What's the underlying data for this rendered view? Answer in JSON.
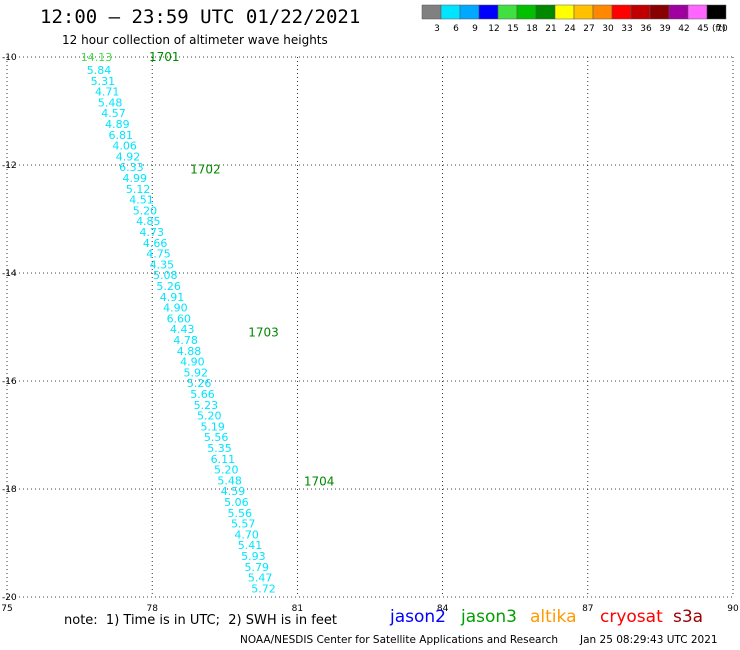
{
  "header": {
    "title": "12:00 – 23:59 UTC 01/22/2021",
    "subtitle": "12 hour collection of altimeter wave heights"
  },
  "legend": {
    "unit": "(ft)",
    "bins": [
      {
        "label": "3",
        "color": "#808080"
      },
      {
        "label": "6",
        "color": "#00e5ff"
      },
      {
        "label": "9",
        "color": "#00a8ff"
      },
      {
        "label": "12",
        "color": "#0000ff"
      },
      {
        "label": "15",
        "color": "#40e040"
      },
      {
        "label": "18",
        "color": "#00c000"
      },
      {
        "label": "21",
        "color": "#008800"
      },
      {
        "label": "24",
        "color": "#ffff00"
      },
      {
        "label": "27",
        "color": "#ffc000"
      },
      {
        "label": "30",
        "color": "#ff8800"
      },
      {
        "label": "33",
        "color": "#ff0000"
      },
      {
        "label": "36",
        "color": "#c00000"
      },
      {
        "label": "39",
        "color": "#880000"
      },
      {
        "label": "42",
        "color": "#a000a0"
      },
      {
        "label": "45",
        "color": "#ff66ff"
      },
      {
        "label": "70",
        "color": "#000000"
      }
    ]
  },
  "footer": {
    "note": "note:  1) Time is in UTC;  2) SWH is in feet",
    "satellites": [
      {
        "name": "jason2",
        "color": "#0000ff"
      },
      {
        "name": "jason3",
        "color": "#00a000"
      },
      {
        "name": "altika",
        "color": "#ff9900"
      },
      {
        "name": "cryosat",
        "color": "#ff0000"
      },
      {
        "name": "s3a",
        "color": "#990000"
      }
    ],
    "credit": "NOAA/NESDIS Center for Satellite Applications and Research",
    "timestamp": "Jan 25 08:29:43 UTC 2021"
  },
  "chart_data": {
    "type": "scatter",
    "xlim": [
      75,
      90
    ],
    "ylim": [
      -20,
      -10
    ],
    "x_ticks": [
      "75",
      "78",
      "81",
      "84",
      "87",
      "90"
    ],
    "y_ticks": [
      "-10",
      "-12",
      "-14",
      "-16",
      "-18",
      "-20"
    ],
    "grid": "dotted",
    "track_color": "#00e5ff",
    "time_color": "#008800",
    "points": [
      {
        "lon": 76.85,
        "lat": -10.0,
        "swh": "14.13",
        "color": "#40e040"
      },
      {
        "lon": 76.9,
        "lat": -10.24,
        "swh": "5.84"
      },
      {
        "lon": 76.98,
        "lat": -10.44,
        "swh": "5.31"
      },
      {
        "lon": 77.07,
        "lat": -10.64,
        "swh": "4.71"
      },
      {
        "lon": 77.13,
        "lat": -10.84,
        "swh": "5.48"
      },
      {
        "lon": 77.2,
        "lat": -11.04,
        "swh": "4.57"
      },
      {
        "lon": 77.28,
        "lat": -11.24,
        "swh": "4.89"
      },
      {
        "lon": 77.35,
        "lat": -11.44,
        "swh": "6.81"
      },
      {
        "lon": 77.43,
        "lat": -11.64,
        "swh": "4.06"
      },
      {
        "lon": 77.5,
        "lat": -11.84,
        "swh": "4.92"
      },
      {
        "lon": 77.57,
        "lat": -12.04,
        "swh": "6.33"
      },
      {
        "lon": 77.64,
        "lat": -12.24,
        "swh": "4.99"
      },
      {
        "lon": 77.71,
        "lat": -12.44,
        "swh": "5.12"
      },
      {
        "lon": 77.78,
        "lat": -12.64,
        "swh": "4.51"
      },
      {
        "lon": 77.85,
        "lat": -12.84,
        "swh": "5.20"
      },
      {
        "lon": 77.92,
        "lat": -13.04,
        "swh": "4.85"
      },
      {
        "lon": 77.99,
        "lat": -13.24,
        "swh": "4.73"
      },
      {
        "lon": 78.06,
        "lat": -13.44,
        "swh": "4.66"
      },
      {
        "lon": 78.13,
        "lat": -13.64,
        "swh": "4.75"
      },
      {
        "lon": 78.2,
        "lat": -13.84,
        "swh": "4.35"
      },
      {
        "lon": 78.27,
        "lat": -14.04,
        "swh": "5.08"
      },
      {
        "lon": 78.34,
        "lat": -14.24,
        "swh": "5.26"
      },
      {
        "lon": 78.41,
        "lat": -14.44,
        "swh": "4.91"
      },
      {
        "lon": 78.48,
        "lat": -14.64,
        "swh": "4.90"
      },
      {
        "lon": 78.55,
        "lat": -14.84,
        "swh": "6.60"
      },
      {
        "lon": 78.62,
        "lat": -15.04,
        "swh": "4.43"
      },
      {
        "lon": 78.69,
        "lat": -15.24,
        "swh": "4.78"
      },
      {
        "lon": 78.76,
        "lat": -15.44,
        "swh": "4.88"
      },
      {
        "lon": 78.83,
        "lat": -15.64,
        "swh": "4.90"
      },
      {
        "lon": 78.9,
        "lat": -15.84,
        "swh": "5.92"
      },
      {
        "lon": 78.97,
        "lat": -16.04,
        "swh": "5.26"
      },
      {
        "lon": 79.04,
        "lat": -16.24,
        "swh": "5.66"
      },
      {
        "lon": 79.11,
        "lat": -16.44,
        "swh": "5.23"
      },
      {
        "lon": 79.18,
        "lat": -16.64,
        "swh": "5.20"
      },
      {
        "lon": 79.25,
        "lat": -16.84,
        "swh": "5.19"
      },
      {
        "lon": 79.32,
        "lat": -17.04,
        "swh": "5.56"
      },
      {
        "lon": 79.39,
        "lat": -17.24,
        "swh": "5.35"
      },
      {
        "lon": 79.46,
        "lat": -17.44,
        "swh": "6.11"
      },
      {
        "lon": 79.53,
        "lat": -17.64,
        "swh": "5.20"
      },
      {
        "lon": 79.6,
        "lat": -17.84,
        "swh": "5.48"
      },
      {
        "lon": 79.67,
        "lat": -18.04,
        "swh": "4.59"
      },
      {
        "lon": 79.74,
        "lat": -18.24,
        "swh": "5.06"
      },
      {
        "lon": 79.81,
        "lat": -18.44,
        "swh": "5.56"
      },
      {
        "lon": 79.88,
        "lat": -18.64,
        "swh": "5.57"
      },
      {
        "lon": 79.95,
        "lat": -18.84,
        "swh": "4.70"
      },
      {
        "lon": 80.02,
        "lat": -19.04,
        "swh": "5.41"
      },
      {
        "lon": 80.09,
        "lat": -19.24,
        "swh": "5.93"
      },
      {
        "lon": 80.16,
        "lat": -19.44,
        "swh": "5.79"
      },
      {
        "lon": 80.23,
        "lat": -19.64,
        "swh": "5.47"
      },
      {
        "lon": 80.3,
        "lat": -19.84,
        "swh": "5.72"
      }
    ],
    "time_labels": [
      {
        "lon": 78.25,
        "lat": -10.0,
        "text": "1701"
      },
      {
        "lon": 79.1,
        "lat": -12.08,
        "text": "1702"
      },
      {
        "lon": 80.3,
        "lat": -15.1,
        "text": "1703"
      },
      {
        "lon": 81.45,
        "lat": -17.86,
        "text": "1704"
      }
    ]
  }
}
